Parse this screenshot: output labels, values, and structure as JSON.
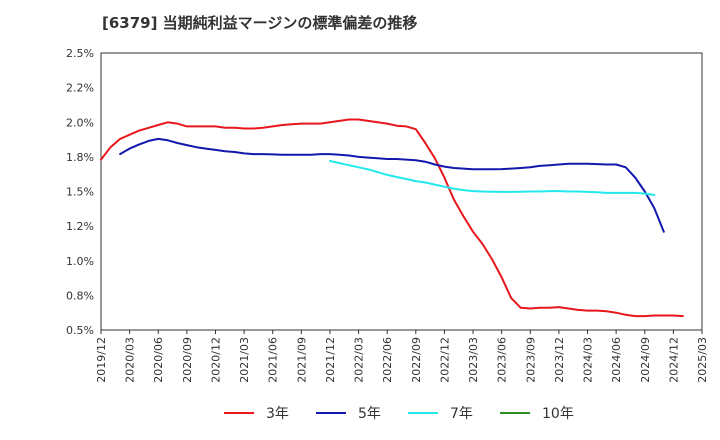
{
  "chart_data": {
    "type": "line",
    "title": "[6379]  当期純利益マージンの標準偏差の推移",
    "xlabel": "",
    "ylabel": "",
    "ylim": [
      0.5,
      2.5
    ],
    "yticks": [
      "2.5%",
      "2.2%",
      "2.0%",
      "1.8%",
      "1.5%",
      "1.2%",
      "1.0%",
      "0.8%",
      "0.5%"
    ],
    "ytick_values": [
      2.5,
      2.25,
      2.0,
      1.75,
      1.5,
      1.25,
      1.0,
      0.75,
      0.5
    ],
    "x_start": "2019/12",
    "x_end": "2025/03",
    "xticks": [
      "2019/12",
      "2020/03",
      "2020/06",
      "2020/09",
      "2020/12",
      "2021/03",
      "2021/06",
      "2021/09",
      "2021/12",
      "2022/03",
      "2022/06",
      "2022/09",
      "2022/12",
      "2023/03",
      "2023/06",
      "2023/09",
      "2023/12",
      "2024/03",
      "2024/06",
      "2024/09",
      "2024/12",
      "2025/03"
    ],
    "grid": true,
    "legend_position": "bottom",
    "series": [
      {
        "name": "3年",
        "color": "#e8161d",
        "start": "2019/12",
        "values": [
          1.73,
          1.82,
          1.88,
          1.91,
          1.94,
          1.96,
          1.98,
          2.0,
          1.99,
          1.97,
          1.97,
          1.97,
          1.97,
          1.96,
          1.96,
          1.955,
          1.955,
          1.96,
          1.97,
          1.98,
          1.985,
          1.99,
          1.99,
          1.99,
          2.0,
          2.01,
          2.02,
          2.02,
          2.01,
          2.0,
          1.99,
          1.975,
          1.97,
          1.95,
          1.85,
          1.74,
          1.6,
          1.44,
          1.32,
          1.21,
          1.12,
          1.01,
          0.88,
          0.73,
          0.66,
          0.655,
          0.66,
          0.66,
          0.665,
          0.655,
          0.645,
          0.64,
          0.64,
          0.635,
          0.625,
          0.61,
          0.6,
          0.6,
          0.605,
          0.605,
          0.605,
          0.6
        ]
      },
      {
        "name": "5年",
        "color": "#1318ac",
        "start": "2020/02",
        "values": [
          1.77,
          1.81,
          1.84,
          1.865,
          1.88,
          1.87,
          1.85,
          1.835,
          1.82,
          1.81,
          1.8,
          1.79,
          1.785,
          1.775,
          1.77,
          1.77,
          1.768,
          1.765,
          1.765,
          1.765,
          1.766,
          1.77,
          1.77,
          1.765,
          1.76,
          1.75,
          1.745,
          1.74,
          1.735,
          1.735,
          1.73,
          1.725,
          1.715,
          1.695,
          1.68,
          1.67,
          1.665,
          1.66,
          1.66,
          1.66,
          1.662,
          1.665,
          1.67,
          1.675,
          1.685,
          1.69,
          1.695,
          1.7,
          1.7,
          1.7,
          1.698,
          1.695,
          1.695,
          1.675,
          1.6,
          1.5,
          1.38,
          1.21
        ]
      },
      {
        "name": "7年",
        "color": "#22e8ec",
        "start": "2021/12",
        "values": [
          1.72,
          1.705,
          1.69,
          1.675,
          1.66,
          1.64,
          1.62,
          1.605,
          1.59,
          1.575,
          1.565,
          1.55,
          1.535,
          1.52,
          1.51,
          1.503,
          1.5,
          1.498,
          1.497,
          1.497,
          1.498,
          1.5,
          1.5,
          1.503,
          1.503,
          1.5,
          1.5,
          1.497,
          1.495,
          1.49,
          1.49,
          1.49,
          1.49,
          1.485,
          1.475
        ]
      },
      {
        "name": "10年",
        "color": "#2b8f26",
        "values": []
      }
    ]
  }
}
